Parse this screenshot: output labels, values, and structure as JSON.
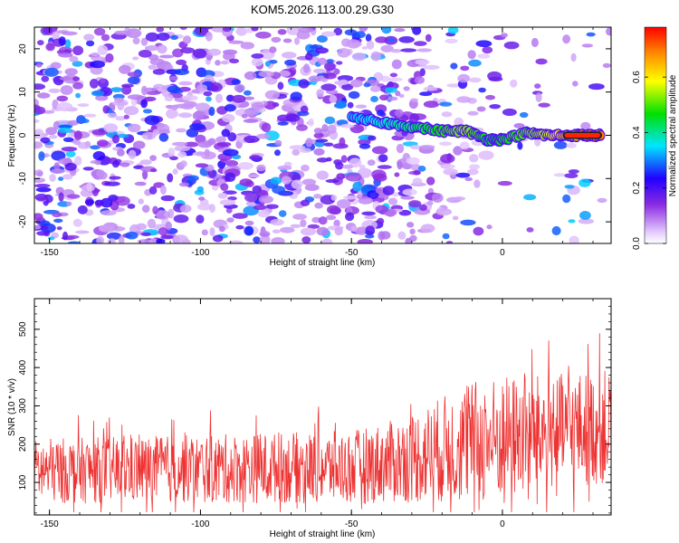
{
  "title": "KOM5.2026.113.00.29.G30",
  "chart_data": [
    {
      "type": "heatmap",
      "xlabel": "Height of straight line (km)",
      "ylabel": "Frequency (Hz)",
      "xlim": [
        -155,
        36
      ],
      "ylim": [
        -25,
        25
      ],
      "xticks": [
        -150,
        -100,
        -50,
        0
      ],
      "yticks": [
        -20,
        -10,
        0,
        10,
        20
      ],
      "colorbar": {
        "label": "Normalized spectral amplitude",
        "range": [
          0.0,
          0.78
        ],
        "ticks": [
          0.0,
          0.2,
          0.4,
          0.6
        ],
        "tick_labels": [
          "0.0",
          "0.2",
          "0.4",
          "0.6"
        ],
        "colormap": "rainbow (white-purple-blue-cyan-green-yellow-red)"
      },
      "feature": {
        "description": "Signal track near 0 Hz, strengthening toward positive heights",
        "track": [
          {
            "x": -50,
            "y": 4,
            "value": 0.15
          },
          {
            "x": -40,
            "y": 3,
            "value": 0.22
          },
          {
            "x": -30,
            "y": 2,
            "value": 0.3
          },
          {
            "x": -20,
            "y": 1,
            "value": 0.4
          },
          {
            "x": -12,
            "y": 1,
            "value": 0.5
          },
          {
            "x": -5,
            "y": -1,
            "value": 0.35
          },
          {
            "x": 0,
            "y": -1,
            "value": 0.38
          },
          {
            "x": 8,
            "y": 0.5,
            "value": 0.45
          },
          {
            "x": 15,
            "y": 0,
            "value": 0.55
          },
          {
            "x": 22,
            "y": 0,
            "value": 0.7
          },
          {
            "x": 28,
            "y": 0,
            "value": 0.78
          },
          {
            "x": 33,
            "y": 0,
            "value": 0.78
          }
        ]
      }
    },
    {
      "type": "line",
      "xlabel": "Height of straight line (km)",
      "ylabel": "SNR (10 * v/v)",
      "xlim": [
        -155,
        36
      ],
      "ylim": [
        15,
        580
      ],
      "xticks": [
        -150,
        -100,
        -50,
        0
      ],
      "yticks": [
        100,
        200,
        300,
        400,
        500
      ],
      "series": [
        {
          "name": "SNR",
          "color": "#ee3333",
          "trend_x": [
            -155,
            -100,
            -50,
            -35,
            -20,
            -10,
            0,
            10,
            20,
            36
          ],
          "trend_mean": [
            130,
            135,
            140,
            155,
            185,
            205,
            215,
            225,
            235,
            245
          ],
          "trend_spread": [
            85,
            90,
            95,
            110,
            140,
            160,
            165,
            155,
            150,
            150
          ],
          "max_value": 570
        }
      ]
    }
  ]
}
